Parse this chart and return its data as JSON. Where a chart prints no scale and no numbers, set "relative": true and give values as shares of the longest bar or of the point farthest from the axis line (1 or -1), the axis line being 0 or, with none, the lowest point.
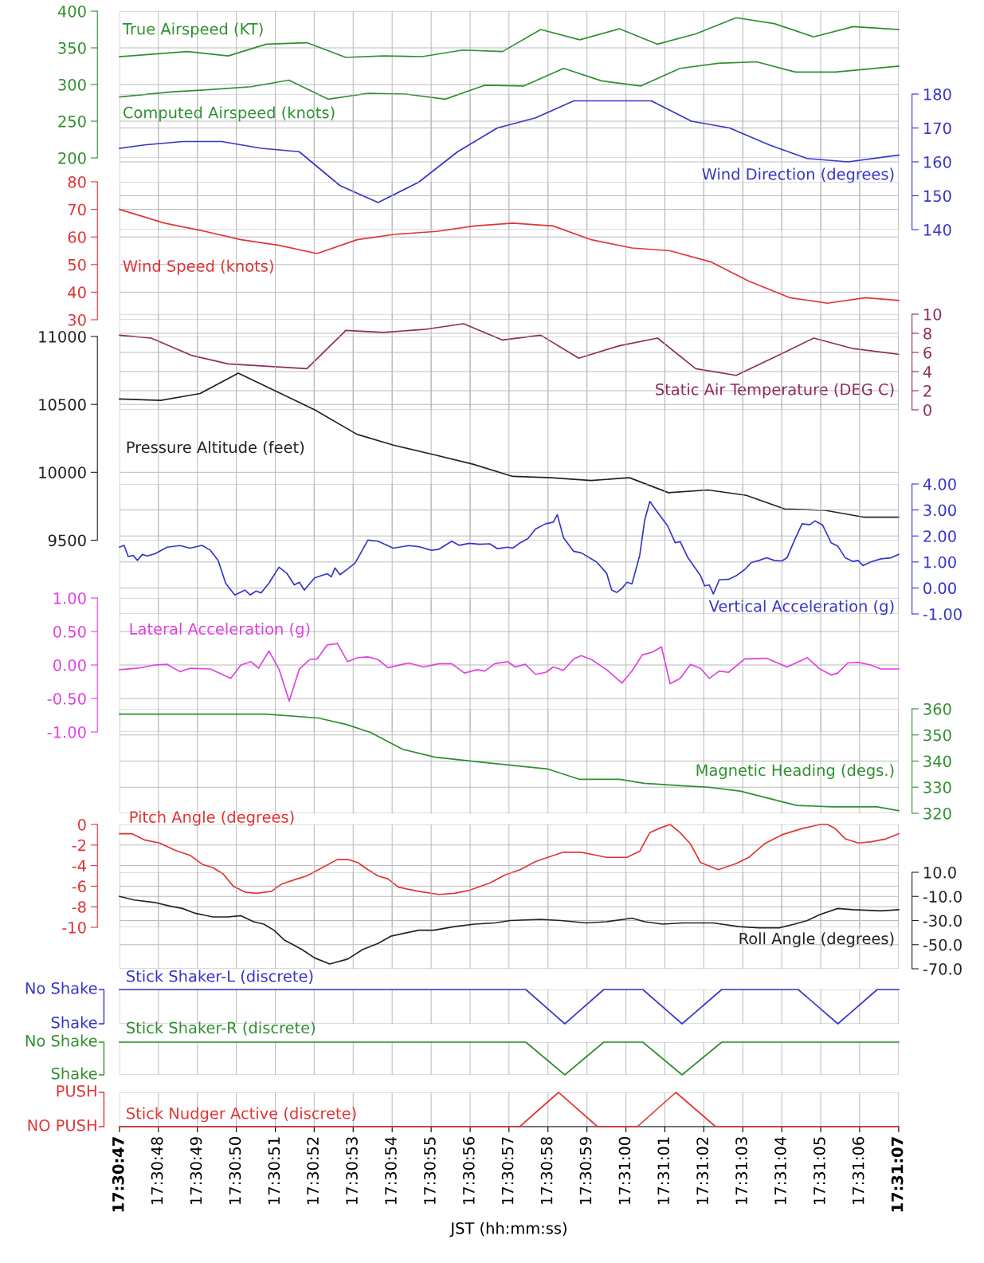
{
  "chart_data": [
    {
      "type": "line",
      "tick_labels": "y",
      "grid": true,
      "xlim": [
        17.513056,
        17.518612
      ],
      "xticks": [
        17.513056,
        17.513333,
        17.513611,
        17.513889,
        17.514167,
        17.514444,
        17.514722,
        17.515,
        17.515278,
        17.515556,
        17.515833,
        17.516111,
        17.516389,
        17.516667,
        17.516944,
        17.517222,
        17.5175,
        17.517778,
        17.518056,
        17.518333,
        17.518611
      ],
      "ylim": [
        200,
        400
      ],
      "yticks": [
        200,
        250,
        300,
        350,
        400
      ],
      "series": [
        {
          "name": "True Airspeed (KT)",
          "color": "#2f8f2f",
          "x": [
            17.513056,
            17.513542,
            17.513831,
            17.514103,
            17.514392,
            17.51467,
            17.514937,
            17.515214,
            17.515503,
            17.515787,
            17.516059,
            17.516337,
            17.51662,
            17.516892,
            17.517164,
            17.517453,
            17.517725,
            17.518006,
            17.518287,
            17.518612
          ],
          "values": [
            338,
            345,
            339,
            355,
            357,
            337,
            339,
            338,
            347,
            345,
            375,
            361,
            376,
            355,
            369,
            391,
            383,
            365,
            379,
            375
          ]
        },
        {
          "name": "Computed Airspeed (knots)",
          "color": "#2f8f2f",
          "x": [
            17.513056,
            17.513434,
            17.513703,
            17.513995,
            17.514264,
            17.514545,
            17.514828,
            17.515098,
            17.515378,
            17.515659,
            17.515939,
            17.516223,
            17.516492,
            17.516773,
            17.517053,
            17.517325,
            17.517598,
            17.517875,
            17.518159,
            17.518612
          ],
          "values": [
            283,
            290,
            293,
            297,
            306,
            280,
            288,
            287,
            280,
            299,
            298,
            322,
            305,
            298,
            322,
            329,
            331,
            317,
            317,
            325
          ]
        }
      ]
    },
    {
      "type": "line",
      "tick_labels": "y",
      "grid": true,
      "xlim": [
        17.513056,
        17.518612
      ],
      "xticks": [
        17.513056,
        17.513333,
        17.513611,
        17.513889,
        17.514167,
        17.514444,
        17.514722,
        17.515,
        17.515278,
        17.515556,
        17.515833,
        17.516111,
        17.516389,
        17.516667,
        17.516944,
        17.517222,
        17.5175,
        17.517778,
        17.518056,
        17.518333,
        17.518611
      ],
      "y2lim": [
        140,
        180
      ],
      "y2ticks": [
        140,
        150,
        160,
        170,
        180
      ],
      "series": [
        {
          "name": "Wind Direction (degrees)",
          "color": "#3535c8",
          "axis": "y2",
          "x": [
            17.513056,
            17.513234,
            17.513506,
            17.513784,
            17.514067,
            17.514337,
            17.514628,
            17.5149,
            17.515189,
            17.515467,
            17.51575,
            17.516023,
            17.516295,
            17.516564,
            17.516848,
            17.517134,
            17.517406,
            17.517689,
            17.517959,
            17.51825,
            17.518612
          ],
          "values": [
            164,
            165,
            166,
            166,
            164,
            163,
            153,
            148,
            154,
            163,
            170,
            173,
            178,
            178,
            178,
            172,
            170,
            165,
            161,
            160,
            162
          ]
        }
      ]
    },
    {
      "type": "line",
      "tick_labels": "y",
      "grid": true,
      "xlim": [
        17.513056,
        17.518612
      ],
      "xticks": [
        17.513056,
        17.513333,
        17.513611,
        17.513889,
        17.514167,
        17.514444,
        17.514722,
        17.515,
        17.515278,
        17.515556,
        17.515833,
        17.516111,
        17.516389,
        17.516667,
        17.516944,
        17.517222,
        17.5175,
        17.517778,
        17.518056,
        17.518333,
        17.518611
      ],
      "ylim": [
        30,
        80
      ],
      "yticks": [
        30,
        40,
        50,
        60,
        70,
        80
      ],
      "series": [
        {
          "name": "Wind Speed (knots)",
          "color": "#e03535",
          "x": [
            17.513056,
            17.513378,
            17.513667,
            17.513923,
            17.514192,
            17.514464,
            17.51475,
            17.515025,
            17.515317,
            17.515587,
            17.515859,
            17.516148,
            17.51642,
            17.516709,
            17.516981,
            17.51727,
            17.517542,
            17.517834,
            17.518103,
            17.518375,
            17.518612
          ],
          "values": [
            70,
            65,
            62,
            59,
            57,
            54,
            59,
            61,
            62,
            64,
            65,
            64,
            59,
            56,
            55,
            51,
            44,
            38,
            36,
            38,
            37
          ]
        }
      ]
    },
    {
      "type": "line",
      "tick_labels": "y",
      "grid": true,
      "xlim": [
        17.513056,
        17.518612
      ],
      "xticks": [
        17.513056,
        17.513333,
        17.513611,
        17.513889,
        17.514167,
        17.514444,
        17.514722,
        17.515,
        17.515278,
        17.515556,
        17.515833,
        17.516111,
        17.516389,
        17.516667,
        17.516944,
        17.517222,
        17.5175,
        17.517778,
        17.518056,
        17.518333,
        17.518611
      ],
      "y2lim": [
        0,
        10
      ],
      "y2ticks": [
        0,
        2,
        4,
        6,
        8,
        10
      ],
      "series": [
        {
          "name": "Static Air Temperature (DEG C)",
          "color": "#8e2b5e",
          "axis": "y2",
          "x": [
            17.513056,
            17.513281,
            17.513567,
            17.513831,
            17.514392,
            17.51467,
            17.514937,
            17.515228,
            17.515509,
            17.515787,
            17.516059,
            17.516331,
            17.51662,
            17.516892,
            17.517164,
            17.517453,
            17.517725,
            17.518006,
            17.518287,
            17.518612
          ],
          "values": [
            7.8,
            7.5,
            5.7,
            4.8,
            4.3,
            8.3,
            8.1,
            8.4,
            9.0,
            7.3,
            7.8,
            5.4,
            6.7,
            7.5,
            4.3,
            3.6,
            5.5,
            7.5,
            6.4,
            5.8
          ]
        }
      ]
    },
    {
      "type": "line",
      "tick_labels": "y",
      "grid": true,
      "xlim": [
        17.513056,
        17.518612
      ],
      "xticks": [
        17.513056,
        17.513333,
        17.513611,
        17.513889,
        17.514167,
        17.514444,
        17.514722,
        17.515,
        17.515278,
        17.515556,
        17.515833,
        17.516111,
        17.516389,
        17.516667,
        17.516944,
        17.517222,
        17.5175,
        17.517778,
        17.518056,
        17.518333,
        17.518611
      ],
      "ylim": [
        9500,
        11000
      ],
      "yticks": [
        9500,
        10000,
        10500,
        11000
      ],
      "series": [
        {
          "name": "Pressure Altitude (feet)",
          "color": "#222222",
          "x": [
            17.513056,
            17.51335,
            17.513631,
            17.513903,
            17.514448,
            17.514748,
            17.515009,
            17.515298,
            17.515575,
            17.515859,
            17.516131,
            17.51642,
            17.516692,
            17.51697,
            17.517253,
            17.517525,
            17.517798,
            17.518087,
            17.518359,
            17.518612
          ],
          "values": [
            10540,
            10530,
            10580,
            10730,
            10460,
            10280,
            10200,
            10130,
            10060,
            9970,
            9960,
            9940,
            9960,
            9850,
            9870,
            9830,
            9730,
            9720,
            9670,
            9670
          ]
        }
      ]
    },
    {
      "type": "line",
      "tick_labels": "y",
      "grid": true,
      "xlim": [
        17.513056,
        17.518612
      ],
      "xticks": [
        17.513056,
        17.513333,
        17.513611,
        17.513889,
        17.514167,
        17.514444,
        17.514722,
        17.515,
        17.515278,
        17.515556,
        17.515833,
        17.516111,
        17.516389,
        17.516667,
        17.516944,
        17.517222,
        17.5175,
        17.517778,
        17.518056,
        17.518333,
        17.518611
      ],
      "y2lim": [
        -1,
        4
      ],
      "y2ticks": [
        {
          "value": -1,
          "label": "-1.00"
        },
        {
          "value": 0,
          "label": "0.00"
        },
        {
          "value": 1,
          "label": "1.00"
        },
        {
          "value": 2,
          "label": "2.00"
        },
        {
          "value": 3,
          "label": "3.00"
        },
        {
          "value": 4,
          "label": "4.00"
        }
      ],
      "series": [
        {
          "name": "Vertical Acceleration (g)",
          "color": "#3535c8",
          "axis": "y2",
          "x": [
            17.513056,
            17.513089,
            17.513118,
            17.513154,
            17.513183,
            17.513219,
            17.513252,
            17.513306,
            17.513396,
            17.513487,
            17.513559,
            17.513643,
            17.513704,
            17.513759,
            17.513813,
            17.513878,
            17.513951,
            17.513987,
            17.51403,
            17.514066,
            17.514121,
            17.514193,
            17.514248,
            17.514302,
            17.514338,
            17.514374,
            17.514447,
            17.514537,
            17.514566,
            17.514592,
            17.514628,
            17.514682,
            17.514736,
            17.514827,
            17.514899,
            17.515008,
            17.515117,
            17.515189,
            17.51528,
            17.515334,
            17.515425,
            17.515479,
            17.515551,
            17.515624,
            17.515696,
            17.515751,
            17.515823,
            17.515859,
            17.515913,
            17.515968,
            17.516022,
            17.516095,
            17.516149,
            17.516178,
            17.516221,
            17.516294,
            17.516348,
            17.516457,
            17.516529,
            17.516565,
            17.516602,
            17.516638,
            17.516674,
            17.51671,
            17.516765,
            17.516801,
            17.516837,
            17.516891,
            17.516964,
            17.517018,
            17.517054,
            17.517109,
            17.517199,
            17.517228,
            17.517261,
            17.51729,
            17.517333,
            17.517398,
            17.517453,
            17.517514,
            17.517561,
            17.517616,
            17.51767,
            17.517724,
            17.517779,
            17.517815,
            17.517869,
            17.517923,
            17.517978,
            17.518014,
            17.518068,
            17.51813,
            17.518177,
            17.518231,
            17.518286,
            17.518322,
            17.518358,
            17.518412,
            17.518485,
            17.518557,
            17.518612
          ],
          "values": [
            1.57,
            1.64,
            1.21,
            1.25,
            1.06,
            1.29,
            1.23,
            1.31,
            1.57,
            1.63,
            1.53,
            1.64,
            1.45,
            1.06,
            0.18,
            -0.27,
            -0.08,
            -0.27,
            -0.12,
            -0.19,
            0.18,
            0.8,
            0.57,
            0.12,
            0.22,
            -0.08,
            0.39,
            0.55,
            0.43,
            0.77,
            0.51,
            0.73,
            0.96,
            1.84,
            1.8,
            1.53,
            1.63,
            1.59,
            1.45,
            1.49,
            1.8,
            1.64,
            1.72,
            1.68,
            1.7,
            1.51,
            1.57,
            1.53,
            1.74,
            1.9,
            2.27,
            2.47,
            2.53,
            2.82,
            1.94,
            1.41,
            1.35,
            1.0,
            0.57,
            -0.08,
            -0.17,
            -0.02,
            0.22,
            0.16,
            1.25,
            2.62,
            3.33,
            2.92,
            2.39,
            1.74,
            1.78,
            1.16,
            0.47,
            0.08,
            0.12,
            -0.23,
            0.32,
            0.33,
            0.47,
            0.71,
            0.98,
            1.06,
            1.16,
            1.06,
            1.04,
            1.16,
            1.84,
            2.47,
            2.43,
            2.58,
            2.43,
            1.74,
            1.61,
            1.16,
            1.02,
            1.06,
            0.86,
            1.0,
            1.12,
            1.16,
            1.29
          ]
        }
      ]
    },
    {
      "type": "line",
      "tick_labels": "y",
      "grid": true,
      "xlim": [
        17.513056,
        17.518612
      ],
      "xticks": [
        17.513056,
        17.513333,
        17.513611,
        17.513889,
        17.514167,
        17.514444,
        17.514722,
        17.515,
        17.515278,
        17.515556,
        17.515833,
        17.516111,
        17.516389,
        17.516667,
        17.516944,
        17.517222,
        17.5175,
        17.517778,
        17.518056,
        17.518333,
        17.518611
      ],
      "ylim": [
        -1,
        1
      ],
      "yticks": [
        {
          "value": -1,
          "label": "-1.00"
        },
        {
          "value": -0.5,
          "label": "-0.50"
        },
        {
          "value": 0,
          "label": "0.00"
        },
        {
          "value": 0.5,
          "label": "0.50"
        },
        {
          "value": 1,
          "label": "1.00"
        }
      ],
      "series": [
        {
          "name": "Lateral Acceleration (g)",
          "color": "#e040e0",
          "x": [
            17.513056,
            17.513183,
            17.513306,
            17.513396,
            17.513487,
            17.513559,
            17.513704,
            17.513849,
            17.513922,
            17.513994,
            17.514048,
            17.514121,
            17.514193,
            17.514266,
            17.514338,
            17.514411,
            17.514465,
            17.514537,
            17.51461,
            17.514682,
            17.514755,
            17.514827,
            17.514899,
            17.514972,
            17.515117,
            17.515225,
            17.515334,
            17.515425,
            17.515515,
            17.515606,
            17.51566,
            17.515732,
            17.515823,
            17.515877,
            17.51595,
            17.516022,
            17.516095,
            17.516149,
            17.516221,
            17.516294,
            17.516348,
            17.516421,
            17.516529,
            17.516638,
            17.51671,
            17.516783,
            17.516855,
            17.51692,
            17.516982,
            17.517054,
            17.517127,
            17.517199,
            17.517261,
            17.517333,
            17.517398,
            17.517514,
            17.51767,
            17.517815,
            17.517869,
            17.51796,
            17.51805,
            17.51813,
            17.518177,
            17.518249,
            17.518322,
            17.518412,
            17.518485,
            17.518612
          ],
          "values": [
            -0.07,
            -0.05,
            0.0,
            0.01,
            -0.1,
            -0.05,
            -0.06,
            -0.2,
            0.0,
            0.05,
            -0.05,
            0.21,
            -0.06,
            -0.54,
            -0.06,
            0.08,
            0.09,
            0.3,
            0.32,
            0.05,
            0.11,
            0.12,
            0.08,
            -0.04,
            0.03,
            -0.03,
            0.02,
            0.02,
            -0.12,
            -0.07,
            -0.09,
            0.02,
            0.05,
            -0.03,
            0.01,
            -0.14,
            -0.11,
            -0.03,
            -0.08,
            0.09,
            0.14,
            0.08,
            -0.07,
            -0.27,
            -0.09,
            0.15,
            0.19,
            0.27,
            -0.28,
            -0.2,
            0.01,
            -0.05,
            -0.2,
            -0.09,
            -0.11,
            0.09,
            0.1,
            -0.03,
            0.02,
            0.11,
            -0.06,
            -0.15,
            -0.12,
            0.03,
            0.04,
            0.0,
            -0.06,
            -0.06
          ]
        }
      ]
    },
    {
      "type": "line",
      "tick_labels": "y",
      "grid": true,
      "xlim": [
        17.513056,
        17.518612
      ],
      "xticks": [
        17.513056,
        17.513333,
        17.513611,
        17.513889,
        17.514167,
        17.514444,
        17.514722,
        17.515,
        17.515278,
        17.515556,
        17.515833,
        17.516111,
        17.516389,
        17.516667,
        17.516944,
        17.517222,
        17.5175,
        17.517778,
        17.518056,
        17.518333,
        17.518611
      ],
      "y2lim": [
        320,
        360
      ],
      "y2ticks": [
        320,
        330,
        340,
        350,
        360
      ],
      "series": [
        {
          "name": "Magnetic Heading (degs.)",
          "color": "#2f8f2f",
          "axis": "y2",
          "x": [
            17.513056,
            17.5141,
            17.514473,
            17.514673,
            17.514845,
            17.515075,
            17.515306,
            17.515648,
            17.516106,
            17.516337,
            17.516623,
            17.516795,
            17.517081,
            17.517253,
            17.517481,
            17.517884,
            17.518139,
            17.518456,
            17.518612
          ],
          "values": [
            358,
            358,
            356.5,
            354,
            351,
            344.5,
            341.5,
            339.5,
            337,
            333,
            333,
            331.5,
            330.5,
            330,
            328.5,
            323,
            322.5,
            322.5,
            321
          ]
        }
      ]
    },
    {
      "type": "line",
      "tick_labels": "y",
      "grid": true,
      "xlim": [
        17.513056,
        17.518612
      ],
      "xticks": [
        17.513056,
        17.513333,
        17.513611,
        17.513889,
        17.514167,
        17.514444,
        17.514722,
        17.515,
        17.515278,
        17.515556,
        17.515833,
        17.516111,
        17.516389,
        17.516667,
        17.516944,
        17.517222,
        17.5175,
        17.517778,
        17.518056,
        17.518333,
        17.518611
      ],
      "ylim": [
        -10,
        0
      ],
      "yticks": [
        -10,
        -8,
        -6,
        -4,
        -2,
        0
      ],
      "series": [
        {
          "name": "Pitch Angle (degrees)",
          "color": "#e03535",
          "x": [
            17.513056,
            17.513143,
            17.513233,
            17.513342,
            17.513451,
            17.513559,
            17.51365,
            17.513722,
            17.513795,
            17.513867,
            17.513958,
            17.51403,
            17.514139,
            17.514211,
            17.51432,
            17.514392,
            17.514501,
            17.51461,
            17.514682,
            17.514755,
            17.514827,
            17.514899,
            17.514972,
            17.515044,
            17.515189,
            17.515334,
            17.515443,
            17.515551,
            17.515696,
            17.515805,
            17.515913,
            17.516022,
            17.516131,
            17.516221,
            17.516348,
            17.516457,
            17.516529,
            17.516674,
            17.516765,
            17.516837,
            17.51692,
            17.516982,
            17.517054,
            17.517127,
            17.517199,
            17.517326,
            17.517453,
            17.517543,
            17.517652,
            17.517779,
            17.517923,
            17.51805,
            17.518105,
            17.518159,
            17.518231,
            17.518322,
            17.518412,
            17.518521,
            17.518612
          ],
          "values": [
            -0.9,
            -0.9,
            -1.5,
            -1.8,
            -2.5,
            -3.0,
            -3.9,
            -4.2,
            -4.8,
            -6.0,
            -6.6,
            -6.7,
            -6.5,
            -5.8,
            -5.3,
            -5.0,
            -4.2,
            -3.4,
            -3.4,
            -3.7,
            -4.4,
            -5.0,
            -5.3,
            -6.1,
            -6.5,
            -6.8,
            -6.7,
            -6.4,
            -5.7,
            -4.9,
            -4.4,
            -3.6,
            -3.1,
            -2.7,
            -2.7,
            -3.0,
            -3.2,
            -3.2,
            -2.6,
            -0.8,
            -0.3,
            0.0,
            -0.8,
            -1.9,
            -3.7,
            -4.4,
            -3.8,
            -3.2,
            -1.9,
            -1.0,
            -0.4,
            0.0,
            0.0,
            -0.4,
            -1.4,
            -1.8,
            -1.7,
            -1.4,
            -0.9
          ]
        }
      ]
    },
    {
      "type": "line",
      "tick_labels": "y",
      "grid": true,
      "xlim": [
        17.513056,
        17.518612
      ],
      "xticks": [
        17.513056,
        17.513333,
        17.513611,
        17.513889,
        17.514167,
        17.514444,
        17.514722,
        17.515,
        17.515278,
        17.515556,
        17.515833,
        17.516111,
        17.516389,
        17.516667,
        17.516944,
        17.517222,
        17.5175,
        17.517778,
        17.518056,
        17.518333,
        17.518611
      ],
      "y2lim": [
        -70,
        10
      ],
      "y2ticks": [
        {
          "value": -70,
          "label": "-70.0"
        },
        {
          "value": -50,
          "label": "-50.0"
        },
        {
          "value": -30,
          "label": "-30.0"
        },
        {
          "value": -10,
          "label": "-10.0"
        },
        {
          "value": 10,
          "label": "10.0"
        }
      ],
      "series": [
        {
          "name": "Roll Angle (degrees)",
          "color": "#222222",
          "axis": "y2",
          "x": [
            17.513056,
            17.513161,
            17.513306,
            17.513415,
            17.513505,
            17.513596,
            17.513722,
            17.513831,
            17.513922,
            17.514012,
            17.514085,
            17.514157,
            17.514229,
            17.514356,
            17.514447,
            17.514555,
            17.514682,
            17.514791,
            17.514899,
            17.51499,
            17.515189,
            17.515298,
            17.515443,
            17.515588,
            17.515732,
            17.515841,
            17.516058,
            17.516203,
            17.516384,
            17.516529,
            17.51671,
            17.516801,
            17.516928,
            17.517072,
            17.517181,
            17.51729,
            17.517471,
            17.517616,
            17.51776,
            17.517869,
            17.51796,
            17.51805,
            17.518177,
            17.518286,
            17.518485,
            17.518612
          ],
          "values": [
            -10,
            -13,
            -15,
            -18,
            -20,
            -24,
            -27,
            -27,
            -26,
            -31,
            -33,
            -38,
            -46,
            -54,
            -61,
            -66,
            -62,
            -54,
            -49,
            -43,
            -38,
            -38,
            -35,
            -33,
            -32,
            -30,
            -29,
            -30,
            -32,
            -31,
            -28,
            -31,
            -33,
            -32,
            -32,
            -32,
            -35,
            -36,
            -36,
            -33,
            -30,
            -25,
            -20,
            -21,
            -22,
            -21
          ]
        }
      ]
    },
    {
      "type": "line",
      "tick_labels": "y",
      "grid": true,
      "xlim": [
        17.513056,
        17.518612
      ],
      "xticks": [
        17.513056,
        17.513333,
        17.513611,
        17.513889,
        17.514167,
        17.514444,
        17.514722,
        17.515,
        17.515278,
        17.515556,
        17.515833,
        17.516111,
        17.516389,
        17.516667,
        17.516944,
        17.517222,
        17.5175,
        17.517778,
        17.518056,
        17.518333,
        17.518611
      ],
      "relative": true,
      "annotations": [
        "No Shake",
        "Shake"
      ],
      "series": [
        {
          "name": "Stick Shaker-L (discrete)",
          "color": "#3535c8",
          "x": [
            17.513056,
            17.515953,
            17.516231,
            17.516509,
            17.516787,
            17.517067,
            17.51735,
            17.517895,
            17.518178,
            17.518459,
            17.518612
          ],
          "values": [
            1,
            1,
            0,
            1,
            1,
            0,
            1,
            1,
            0,
            1,
            1
          ]
        }
      ]
    },
    {
      "type": "line",
      "tick_labels": "y",
      "grid": true,
      "xlim": [
        17.513056,
        17.518612
      ],
      "xticks": [
        17.513056,
        17.513333,
        17.513611,
        17.513889,
        17.514167,
        17.514444,
        17.514722,
        17.515,
        17.515278,
        17.515556,
        17.515833,
        17.516111,
        17.516389,
        17.516667,
        17.516944,
        17.517222,
        17.5175,
        17.517778,
        17.518056,
        17.518333,
        17.518611
      ],
      "relative": true,
      "annotations": [
        "No Shake",
        "Shake"
      ],
      "series": [
        {
          "name": "Stick Shaker-R (discrete)",
          "color": "#2f8f2f",
          "x": [
            17.513056,
            17.515953,
            17.516231,
            17.516509,
            17.516787,
            17.517067,
            17.51735,
            17.518612
          ],
          "values": [
            1,
            1,
            0,
            1,
            1,
            0,
            1,
            1
          ]
        }
      ]
    },
    {
      "type": "line",
      "grid": true,
      "xlabel": "JST (hh:mm:ss)",
      "xlim": [
        17.513056,
        17.518612
      ],
      "xticks": [
        {
          "value": 17.513056,
          "label": "17:30:47"
        },
        {
          "value": 17.513333,
          "label": "17:30:48"
        },
        {
          "value": 17.513611,
          "label": "17:30:49"
        },
        {
          "value": 17.513889,
          "label": "17:30:50"
        },
        {
          "value": 17.514167,
          "label": "17:30:51"
        },
        {
          "value": 17.514444,
          "label": "17:30:52"
        },
        {
          "value": 17.514722,
          "label": "17:30:53"
        },
        {
          "value": 17.515,
          "label": "17:30:54"
        },
        {
          "value": 17.515278,
          "label": "17:30:55"
        },
        {
          "value": 17.515556,
          "label": "17:30:56"
        },
        {
          "value": 17.515833,
          "label": "17:30:57"
        },
        {
          "value": 17.516111,
          "label": "17:30:58"
        },
        {
          "value": 17.516389,
          "label": "17:30:59"
        },
        {
          "value": 17.516667,
          "label": "17:31:00"
        },
        {
          "value": 17.516944,
          "label": "17:31:01"
        },
        {
          "value": 17.517222,
          "label": "17:31:02"
        },
        {
          "value": 17.5175,
          "label": "17:31:03"
        },
        {
          "value": 17.517778,
          "label": "17:31:04"
        },
        {
          "value": 17.518056,
          "label": "17:31:05"
        },
        {
          "value": 17.518333,
          "label": "17:31:06"
        },
        {
          "value": 17.518611,
          "label": "17:31:07"
        }
      ],
      "relative": true,
      "annotations": [
        "PUSH",
        "NO PUSH"
      ],
      "series": [
        {
          "name": "Stick Nudger Active (discrete)",
          "color": "#e03535",
          "x": [
            17.513056,
            17.515909,
            17.516187,
            17.516464,
            17.516748,
            17.517023,
            17.517306,
            17.518612
          ],
          "values": [
            0,
            0,
            1,
            0,
            0,
            1,
            0,
            0
          ]
        }
      ]
    }
  ]
}
